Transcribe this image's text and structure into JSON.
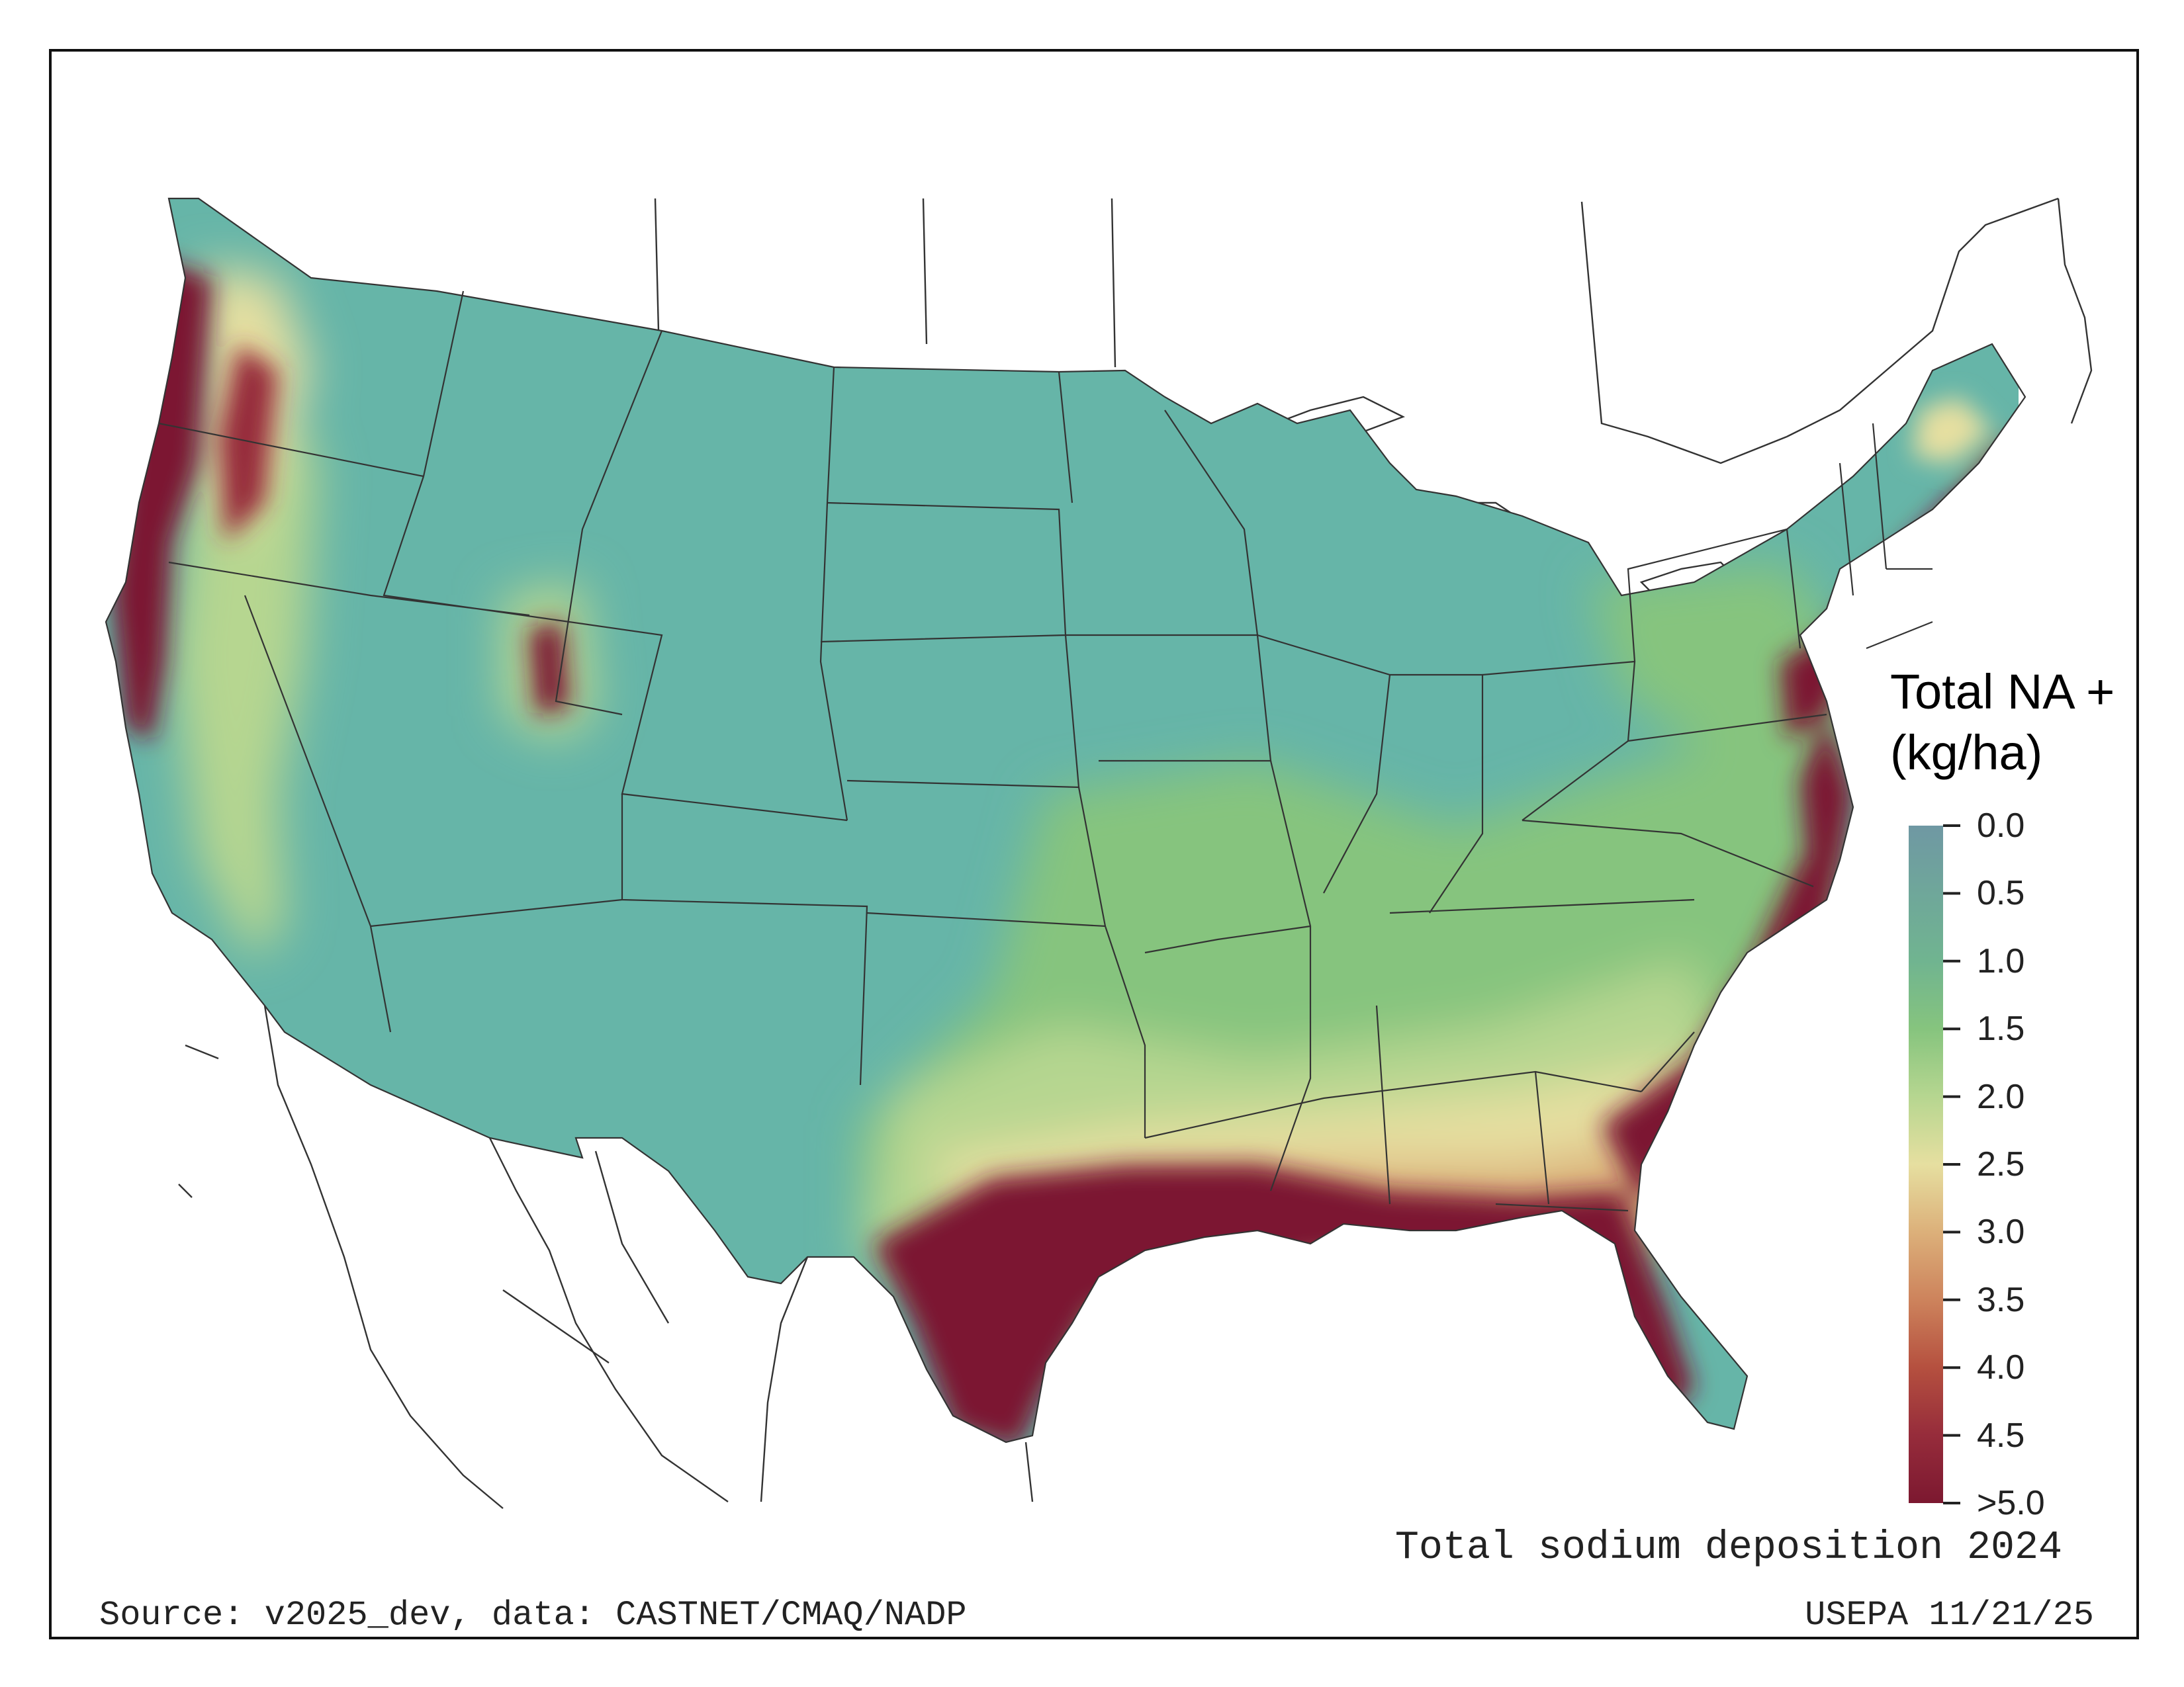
{
  "map": {
    "title": "Total sodium deposition 2024",
    "source": "Source: v2025_dev, data: CASTNET/CMAQ/NADP",
    "agency_date": "USEPA 11/21/25",
    "region": "Contiguous United States",
    "variable": "Total sodium (Na+) deposition",
    "pattern": "Highest (>5.0 kg/ha) along Pacific coast, Gulf coast, Florida and Atlantic coast; about 1.0 across the interior West and Great Plains; moderate 1.5-2.5 across the Southeast interior"
  },
  "legend": {
    "title_line1": "Total NA +",
    "title_line2": "(kg/ha)",
    "ticks": [
      "0.0",
      "0.5",
      "1.0",
      "1.5",
      "2.0",
      "2.5",
      "3.0",
      "3.5",
      "4.0",
      "4.5",
      ">5.0"
    ],
    "colors": [
      "#6f98a3",
      "#6fa79a",
      "#70b490",
      "#86c47e",
      "#b6d690",
      "#e6dfa0",
      "#dcb07a",
      "#cd835c",
      "#b5503f",
      "#962c3b",
      "#7c1830"
    ]
  },
  "colors": {
    "interior": "#66b5a8",
    "mid": "#86c47e",
    "low_coast": "#e6dfa0",
    "high_coast": "#7c1830",
    "outline": "#333333"
  }
}
